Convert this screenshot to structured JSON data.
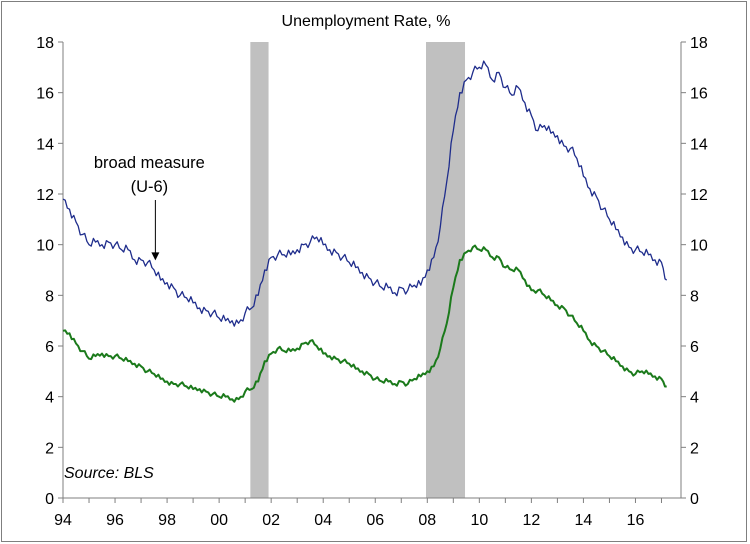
{
  "chart_data": {
    "type": "line",
    "title": "Unemployment Rate, %",
    "xlim": [
      1994,
      2017.75
    ],
    "ylim": [
      0,
      18
    ],
    "yticks": [
      0,
      2,
      4,
      6,
      8,
      10,
      12,
      14,
      16,
      18
    ],
    "xticks": [
      1994,
      1996,
      1998,
      2000,
      2002,
      2004,
      2006,
      2008,
      2010,
      2012,
      2014,
      2016
    ],
    "xtick_labels": [
      "94",
      "96",
      "98",
      "00",
      "02",
      "04",
      "06",
      "08",
      "10",
      "12",
      "14",
      "16"
    ],
    "grid": false,
    "recessions": [
      {
        "start": 2001.2,
        "end": 2001.9
      },
      {
        "start": 2007.95,
        "end": 2009.45
      }
    ],
    "series": [
      {
        "color": "#1f2d8c",
        "x": [
          1994.0,
          1994.25,
          1994.5,
          1994.75,
          1995.0,
          1995.25,
          1995.5,
          1995.75,
          1996.0,
          1996.25,
          1996.5,
          1996.75,
          1997.0,
          1997.25,
          1997.5,
          1997.75,
          1998.0,
          1998.25,
          1998.5,
          1998.75,
          1999.0,
          1999.25,
          1999.5,
          1999.75,
          2000.0,
          2000.25,
          2000.5,
          2000.75,
          2001.0,
          2001.25,
          2001.5,
          2001.75,
          2002.0,
          2002.25,
          2002.5,
          2002.75,
          2003.0,
          2003.25,
          2003.5,
          2003.75,
          2004.0,
          2004.25,
          2004.5,
          2004.75,
          2005.0,
          2005.25,
          2005.5,
          2005.75,
          2006.0,
          2006.25,
          2006.5,
          2006.75,
          2007.0,
          2007.25,
          2007.5,
          2007.75,
          2008.0,
          2008.25,
          2008.5,
          2008.75,
          2009.0,
          2009.25,
          2009.5,
          2009.75,
          2010.0,
          2010.25,
          2010.5,
          2010.75,
          2011.0,
          2011.25,
          2011.5,
          2011.75,
          2012.0,
          2012.25,
          2012.5,
          2012.75,
          2013.0,
          2013.25,
          2013.5,
          2013.75,
          2014.0,
          2014.25,
          2014.5,
          2014.75,
          2015.0,
          2015.25,
          2015.5,
          2015.75,
          2016.0,
          2016.25,
          2016.5,
          2016.75,
          2017.0,
          2017.2
        ],
        "values": [
          11.8,
          11.4,
          10.9,
          10.4,
          10.0,
          10.1,
          10.0,
          10.1,
          10.0,
          9.8,
          9.8,
          9.4,
          9.4,
          9.3,
          9.0,
          8.6,
          8.5,
          8.3,
          8.0,
          7.9,
          7.7,
          7.5,
          7.4,
          7.3,
          7.1,
          7.0,
          7.0,
          6.9,
          7.3,
          7.5,
          8.0,
          9.0,
          9.5,
          9.6,
          9.6,
          9.6,
          9.8,
          10.0,
          10.1,
          10.3,
          10.0,
          9.8,
          9.7,
          9.5,
          9.3,
          9.1,
          8.9,
          8.7,
          8.5,
          8.3,
          8.3,
          8.1,
          8.3,
          8.2,
          8.4,
          8.4,
          9.0,
          9.5,
          10.7,
          12.5,
          14.5,
          16.0,
          16.5,
          16.8,
          17.0,
          17.1,
          16.5,
          16.8,
          16.2,
          15.9,
          16.2,
          15.6,
          15.1,
          14.5,
          14.7,
          14.4,
          14.3,
          13.9,
          13.8,
          13.4,
          12.7,
          12.2,
          11.9,
          11.4,
          11.0,
          10.6,
          10.3,
          9.9,
          9.8,
          9.7,
          9.6,
          9.4,
          9.3,
          8.6
        ]
      },
      {
        "color": "#1b7a1b",
        "x": [
          1994.0,
          1994.25,
          1994.5,
          1994.75,
          1995.0,
          1995.25,
          1995.5,
          1995.75,
          1996.0,
          1996.25,
          1996.5,
          1996.75,
          1997.0,
          1997.25,
          1997.5,
          1997.75,
          1998.0,
          1998.25,
          1998.5,
          1998.75,
          1999.0,
          1999.25,
          1999.5,
          1999.75,
          2000.0,
          2000.25,
          2000.5,
          2000.75,
          2001.0,
          2001.25,
          2001.5,
          2001.75,
          2002.0,
          2002.25,
          2002.5,
          2002.75,
          2003.0,
          2003.25,
          2003.5,
          2003.75,
          2004.0,
          2004.25,
          2004.5,
          2004.75,
          2005.0,
          2005.25,
          2005.5,
          2005.75,
          2006.0,
          2006.25,
          2006.5,
          2006.75,
          2007.0,
          2007.25,
          2007.5,
          2007.75,
          2008.0,
          2008.25,
          2008.5,
          2008.75,
          2009.0,
          2009.25,
          2009.5,
          2009.75,
          2010.0,
          2010.25,
          2010.5,
          2010.75,
          2011.0,
          2011.25,
          2011.5,
          2011.75,
          2012.0,
          2012.25,
          2012.5,
          2012.75,
          2013.0,
          2013.25,
          2013.5,
          2013.75,
          2014.0,
          2014.25,
          2014.5,
          2014.75,
          2015.0,
          2015.25,
          2015.5,
          2015.75,
          2016.0,
          2016.25,
          2016.5,
          2016.75,
          2017.0,
          2017.2
        ],
        "values": [
          6.6,
          6.5,
          6.1,
          5.8,
          5.5,
          5.6,
          5.7,
          5.6,
          5.6,
          5.5,
          5.4,
          5.3,
          5.2,
          5.0,
          4.9,
          4.7,
          4.6,
          4.5,
          4.5,
          4.4,
          4.3,
          4.3,
          4.2,
          4.1,
          4.0,
          4.0,
          3.9,
          3.9,
          4.2,
          4.3,
          4.6,
          5.4,
          5.7,
          5.9,
          5.8,
          5.8,
          5.9,
          6.1,
          6.2,
          6.0,
          5.7,
          5.6,
          5.5,
          5.4,
          5.3,
          5.1,
          5.0,
          4.9,
          4.7,
          4.6,
          4.6,
          4.5,
          4.6,
          4.5,
          4.7,
          4.8,
          5.0,
          5.2,
          5.9,
          6.9,
          8.3,
          9.4,
          9.7,
          9.9,
          9.8,
          9.8,
          9.5,
          9.5,
          9.1,
          9.0,
          9.0,
          8.6,
          8.2,
          8.2,
          8.0,
          7.8,
          7.6,
          7.5,
          7.2,
          6.9,
          6.6,
          6.2,
          6.0,
          5.8,
          5.6,
          5.4,
          5.2,
          5.0,
          4.9,
          5.0,
          4.9,
          4.8,
          4.7,
          4.4
        ]
      }
    ],
    "annotation": {
      "line1": "broad measure",
      "line2": "(U-6)",
      "x": 1997.55,
      "y": 9.3
    },
    "source": "Source: BLS"
  }
}
